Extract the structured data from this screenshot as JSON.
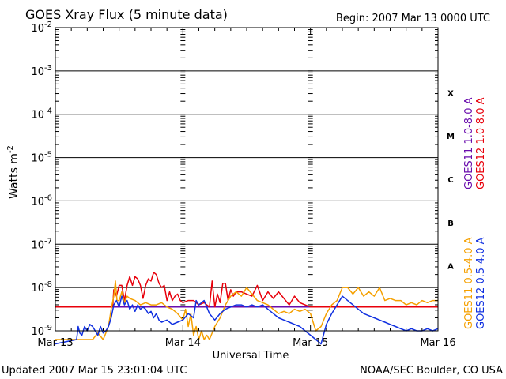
{
  "header": {
    "title": "GOES Xray Flux (5 minute data)",
    "begin": "Begin:  2007 Mar 13 0000 UTC"
  },
  "footer": {
    "updated": "Updated 2007 Mar 15 23:01:04 UTC",
    "credit": "NOAA/SEC Boulder, CO USA"
  },
  "chart_data": {
    "type": "line",
    "title": "GOES Xray Flux (5 minute data)",
    "xlabel": "Universal Time",
    "ylabel": "Watts m",
    "ylabel_sup": "-2",
    "yscale": "log",
    "x_unit": "hours since 2007 Mar 13 0000 UTC",
    "xlim": [
      0,
      72
    ],
    "ylim_exponent": [
      -9,
      -2
    ],
    "x_ticks": [
      {
        "label": "Mar 13",
        "x": 0
      },
      {
        "label": "Mar 14",
        "x": 24
      },
      {
        "label": "Mar 15",
        "x": 48
      },
      {
        "label": "Mar 16",
        "x": 72
      }
    ],
    "y_ticks": [
      {
        "base": "10",
        "exp": "-2",
        "value": -2
      },
      {
        "base": "10",
        "exp": "-3",
        "value": -3
      },
      {
        "base": "10",
        "exp": "-4",
        "value": -4
      },
      {
        "base": "10",
        "exp": "-5",
        "value": -5
      },
      {
        "base": "10",
        "exp": "-6",
        "value": -6
      },
      {
        "base": "10",
        "exp": "-7",
        "value": -7
      },
      {
        "base": "10",
        "exp": "-8",
        "value": -8
      },
      {
        "base": "10",
        "exp": "-9",
        "value": -9
      }
    ],
    "flare_classes": [
      {
        "label": "X",
        "value": -3.5
      },
      {
        "label": "M",
        "value": -4.5
      },
      {
        "label": "C",
        "value": -5.5
      },
      {
        "label": "B",
        "value": -6.5
      },
      {
        "label": "A",
        "value": -7.5
      }
    ],
    "grid": true,
    "legend_position": "right-vertical",
    "series": [
      {
        "name": "GOES11 1.0-8.0 A",
        "color": "#6a0dad",
        "x": [
          0,
          72
        ],
        "y": [
          -8.45,
          -8.45
        ]
      },
      {
        "name": "GOES12 1.0-8.0 A",
        "color": "#e8000b",
        "x": [
          0,
          10.8,
          11,
          11.5,
          12,
          12.5,
          13,
          13.5,
          14,
          14.5,
          15,
          15.5,
          16,
          16.5,
          17,
          17.5,
          18,
          18.5,
          19,
          19.5,
          20,
          20.5,
          21,
          21.5,
          22,
          22.5,
          23,
          23.5,
          24,
          25,
          26,
          27,
          28,
          29,
          29.5,
          30,
          30.5,
          31,
          31.5,
          32,
          32.5,
          33,
          33.5,
          34,
          35,
          36,
          37,
          38,
          39,
          40,
          41,
          42,
          43,
          44,
          45,
          46,
          47,
          48,
          72
        ],
        "y": [
          -8.45,
          -8.45,
          -8.05,
          -8.2,
          -7.95,
          -7.95,
          -8.3,
          -7.95,
          -7.75,
          -7.95,
          -7.75,
          -7.8,
          -7.95,
          -8.25,
          -7.95,
          -7.8,
          -7.85,
          -7.65,
          -7.7,
          -7.9,
          -8.0,
          -7.95,
          -8.3,
          -8.1,
          -8.3,
          -8.2,
          -8.15,
          -8.3,
          -8.35,
          -8.3,
          -8.3,
          -8.4,
          -8.35,
          -8.45,
          -7.85,
          -8.45,
          -8.15,
          -8.35,
          -7.9,
          -7.9,
          -8.3,
          -8.05,
          -8.2,
          -8.1,
          -8.1,
          -8.15,
          -8.2,
          -7.95,
          -8.3,
          -8.1,
          -8.25,
          -8.1,
          -8.25,
          -8.4,
          -8.2,
          -8.35,
          -8.4,
          -8.45,
          -8.45
        ]
      },
      {
        "name": "GOES11 0.5-4.0 A",
        "color": "#f5a000",
        "x": [
          0,
          3,
          5,
          7,
          8,
          9,
          10,
          10.5,
          11,
          11.3,
          11.6,
          12,
          12.5,
          13,
          13.5,
          14,
          15,
          16,
          17,
          18,
          19,
          20,
          21,
          22,
          23,
          24,
          24.5,
          25,
          25.5,
          26,
          26.5,
          27,
          27.5,
          28,
          28.5,
          29,
          30,
          31,
          32,
          33,
          34,
          35,
          36,
          37,
          38,
          39,
          40,
          41,
          42,
          43,
          44,
          45,
          46,
          47,
          48,
          49,
          50,
          51,
          52,
          53,
          54,
          55,
          56,
          57,
          58,
          59,
          60,
          61,
          62,
          63,
          64,
          65,
          66,
          67,
          68,
          69,
          70,
          71,
          72
        ],
        "y": [
          -9.2,
          -9.2,
          -9.2,
          -9.2,
          -9.05,
          -9.2,
          -8.9,
          -8.5,
          -8.2,
          -7.85,
          -8.3,
          -8.3,
          -8.1,
          -8.35,
          -8.2,
          -8.25,
          -8.3,
          -8.4,
          -8.35,
          -8.4,
          -8.4,
          -8.35,
          -8.45,
          -8.5,
          -8.6,
          -8.75,
          -8.5,
          -8.9,
          -8.6,
          -9.1,
          -8.9,
          -9.2,
          -9.0,
          -9.2,
          -9.1,
          -9.2,
          -8.9,
          -8.7,
          -8.4,
          -8.2,
          -8.1,
          -8.2,
          -8.0,
          -8.15,
          -8.3,
          -8.35,
          -8.4,
          -8.5,
          -8.6,
          -8.55,
          -8.6,
          -8.5,
          -8.55,
          -8.5,
          -8.6,
          -9.0,
          -8.9,
          -8.6,
          -8.4,
          -8.3,
          -8.0,
          -8.0,
          -8.15,
          -8.0,
          -8.2,
          -8.1,
          -8.2,
          -8.0,
          -8.3,
          -8.25,
          -8.3,
          -8.3,
          -8.4,
          -8.35,
          -8.4,
          -8.3,
          -8.35,
          -8.3,
          -8.3
        ]
      },
      {
        "name": "GOES12 0.5-4.0 A",
        "color": "#1030e0",
        "x": [
          0,
          4,
          4.3,
          4.6,
          5,
          5.5,
          6,
          6.5,
          7,
          7.5,
          8,
          8.5,
          9,
          9.5,
          10,
          10.5,
          11,
          11.5,
          12,
          12.5,
          13,
          13.5,
          14,
          14.5,
          15,
          15.5,
          16,
          16.5,
          17,
          17.5,
          18,
          18.5,
          19,
          19.5,
          20,
          21,
          22,
          23,
          24,
          25,
          26,
          26.5,
          27,
          28,
          29,
          30,
          31,
          32,
          33,
          34,
          35,
          36,
          37,
          38,
          39,
          40,
          41,
          42,
          43,
          44,
          45,
          46,
          47,
          48,
          49,
          50,
          51,
          52,
          53,
          54,
          55,
          56,
          57,
          58,
          59,
          60,
          61,
          62,
          63,
          64,
          65,
          66,
          67,
          68,
          69,
          70,
          71,
          72
        ],
        "y": [
          -9.3,
          -9.2,
          -8.9,
          -9.05,
          -9.1,
          -8.9,
          -9.0,
          -8.85,
          -8.9,
          -9.0,
          -9.1,
          -8.9,
          -9.05,
          -9.0,
          -8.9,
          -8.7,
          -8.4,
          -8.3,
          -8.45,
          -8.2,
          -8.4,
          -8.3,
          -8.5,
          -8.4,
          -8.55,
          -8.4,
          -8.5,
          -8.45,
          -8.5,
          -8.6,
          -8.55,
          -8.7,
          -8.6,
          -8.75,
          -8.8,
          -8.75,
          -8.85,
          -8.8,
          -8.75,
          -8.6,
          -8.7,
          -8.3,
          -8.4,
          -8.3,
          -8.6,
          -8.75,
          -8.6,
          -8.5,
          -8.45,
          -8.4,
          -8.4,
          -8.45,
          -8.4,
          -8.45,
          -8.4,
          -8.5,
          -8.6,
          -8.7,
          -8.75,
          -8.8,
          -8.85,
          -8.9,
          -9.0,
          -9.1,
          -9.2,
          -9.3,
          -8.85,
          -8.6,
          -8.4,
          -8.2,
          -8.3,
          -8.4,
          -8.5,
          -8.6,
          -8.65,
          -8.7,
          -8.75,
          -8.8,
          -8.85,
          -8.9,
          -8.95,
          -9.0,
          -8.95,
          -9.0,
          -9.0,
          -8.95,
          -9.0,
          -8.95
        ]
      }
    ]
  }
}
